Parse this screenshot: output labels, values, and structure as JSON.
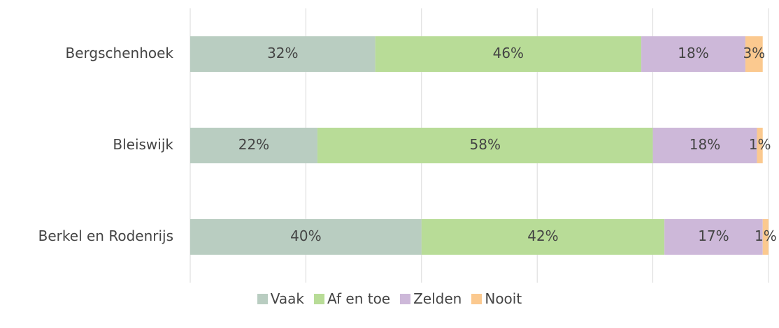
{
  "chart_data": {
    "type": "stacked-barh",
    "categories": [
      "Bergschenhoek",
      "Bleiswijk",
      "Berkel en Rodenrijs"
    ],
    "series": [
      {
        "name": "Vaak",
        "color": "#b9cdc1",
        "values": [
          32,
          22,
          40
        ],
        "value_labels": [
          "32%",
          "22%",
          "40%"
        ]
      },
      {
        "name": "Af en toe",
        "color": "#b8dc97",
        "values": [
          46,
          58,
          42
        ],
        "value_labels": [
          "46%",
          "58%",
          "42%"
        ]
      },
      {
        "name": "Zelden",
        "color": "#cdb8d9",
        "values": [
          18,
          18,
          17
        ],
        "value_labels": [
          "18%",
          "18%",
          "17%"
        ]
      },
      {
        "name": "Nooit",
        "color": "#fbc98f",
        "values": [
          3,
          1,
          1
        ],
        "value_labels": [
          "3%",
          "1%",
          "1%"
        ]
      }
    ],
    "xlim": [
      0,
      100
    ],
    "xticks": [
      0,
      20,
      40,
      60,
      80,
      100
    ],
    "grid": true,
    "legend": "bottom"
  }
}
